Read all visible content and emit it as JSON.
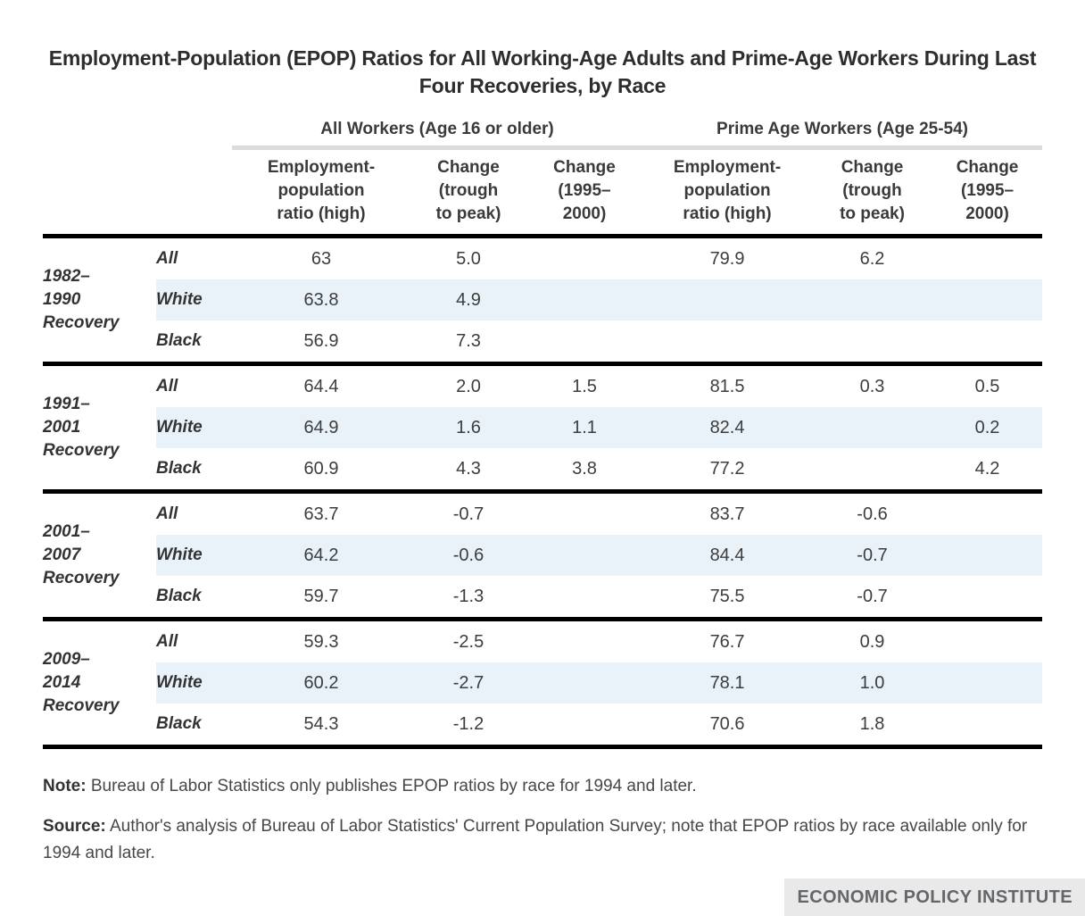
{
  "chart_data": {
    "type": "table",
    "title": "Employment-Population (EPOP) Ratios for All Working-Age Adults and Prime-Age Workers During Last Four Recoveries, by Race",
    "column_groups": [
      {
        "label": "All Workers (Age 16 or older)",
        "span": 3
      },
      {
        "label": "Prime Age Workers (Age 25-54)",
        "span": 3
      }
    ],
    "columns": [
      "Employment-\npopulation\nratio (high)",
      "Change\n(trough\nto peak)",
      "Change\n(1995–\n2000)",
      "Employment-\npopulation\nratio (high)",
      "Change\n(trough\nto peak)",
      "Change\n(1995–\n2000)"
    ],
    "row_groups": [
      {
        "period": "1982–\n1990\nRecovery",
        "rows": [
          {
            "race": "All",
            "values": [
              "63",
              "5.0",
              "",
              "79.9",
              "6.2",
              ""
            ]
          },
          {
            "race": "White",
            "values": [
              "63.8",
              "4.9",
              "",
              "",
              "",
              ""
            ]
          },
          {
            "race": "Black",
            "values": [
              "56.9",
              "7.3",
              "",
              "",
              "",
              ""
            ]
          }
        ]
      },
      {
        "period": "1991–\n2001\nRecovery",
        "rows": [
          {
            "race": "All",
            "values": [
              "64.4",
              "2.0",
              "1.5",
              "81.5",
              "0.3",
              "0.5"
            ]
          },
          {
            "race": "White",
            "values": [
              "64.9",
              "1.6",
              "1.1",
              "82.4",
              "",
              "0.2"
            ]
          },
          {
            "race": "Black",
            "values": [
              "60.9",
              "4.3",
              "3.8",
              "77.2",
              "",
              "4.2"
            ]
          }
        ]
      },
      {
        "period": "2001–\n2007\nRecovery",
        "rows": [
          {
            "race": "All",
            "values": [
              "63.7",
              "-0.7",
              "",
              "83.7",
              "-0.6",
              ""
            ]
          },
          {
            "race": "White",
            "values": [
              "64.2",
              "-0.6",
              "",
              "84.4",
              "-0.7",
              ""
            ]
          },
          {
            "race": "Black",
            "values": [
              "59.7",
              "-1.3",
              "",
              "75.5",
              "-0.7",
              ""
            ]
          }
        ]
      },
      {
        "period": "2009–\n2014\nRecovery",
        "rows": [
          {
            "race": "All",
            "values": [
              "59.3",
              "-2.5",
              "",
              "76.7",
              "0.9",
              ""
            ]
          },
          {
            "race": "White",
            "values": [
              "60.2",
              "-2.7",
              "",
              "78.1",
              "1.0",
              ""
            ]
          },
          {
            "race": "Black",
            "values": [
              "54.3",
              "-1.2",
              "",
              "70.6",
              "1.8",
              ""
            ]
          }
        ]
      }
    ],
    "note_label": "Note:",
    "note_text": " Bureau of Labor Statistics only publishes EPOP ratios by race for 1994 and later.",
    "source_label": "Source:",
    "source_text": " Author's analysis of Bureau of Labor Statistics' Current Population Survey; note that EPOP ratios by race available only for 1994 and later.",
    "logo_text": "ECONOMIC POLICY INSTITUTE",
    "colors": {
      "stripe": "#e9f1f9",
      "rule_gray": "#dcdcdc",
      "rule_black": "#000000",
      "text": "#3d3d3d",
      "logo_bg": "#e9e9e9",
      "logo_text": "#63666a"
    }
  }
}
